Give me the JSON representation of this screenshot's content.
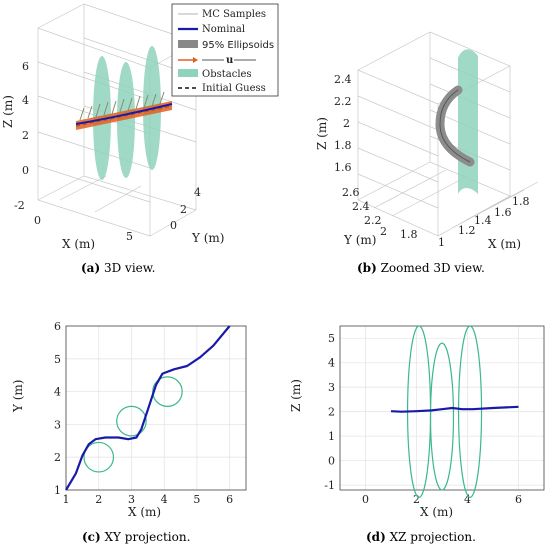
{
  "panels": {
    "a": {
      "caption_tag": "(a)",
      "caption": "3D view."
    },
    "b": {
      "caption_tag": "(b)",
      "caption": "Zoomed 3D view."
    },
    "c": {
      "caption_tag": "(c)",
      "caption": "XY projection."
    },
    "d": {
      "caption_tag": "(d)",
      "caption": "XZ projection."
    }
  },
  "legend": {
    "items": [
      {
        "label": "MC Samples",
        "symbol": "thin-line",
        "color": "#b0b0b0"
      },
      {
        "label": "Nominal",
        "symbol": "thick-line",
        "color": "#1a1aaa"
      },
      {
        "label": "95% Ellipsoids",
        "symbol": "band",
        "color": "#888888"
      },
      {
        "label": "u",
        "symbol": "arrow",
        "color": "#e06020"
      },
      {
        "label": "Obstacles",
        "symbol": "patch",
        "color": "#8fd3bc"
      },
      {
        "label": "Initial Guess",
        "symbol": "dashed-line",
        "color": "#111111"
      }
    ]
  },
  "chart_data": [
    {
      "id": "a",
      "type": "line3d",
      "xlabel": "X (m)",
      "ylabel": "Y (m)",
      "zlabel": "Z (m)",
      "x_ticks": [
        "0",
        "5"
      ],
      "y_ticks": [
        "0",
        "2",
        "4"
      ],
      "z_ticks": [
        "-2",
        "0",
        "2",
        "4",
        "6"
      ],
      "xlim": [
        0,
        7
      ],
      "ylim": [
        0,
        6
      ],
      "zlim": [
        -2,
        6.5
      ]
    },
    {
      "id": "b",
      "type": "line3d",
      "xlabel": "X (m)",
      "ylabel": "Y (m)",
      "zlabel": "Z (m)",
      "x_ticks": [
        "1",
        "1.2",
        "1.4",
        "1.6",
        "1.8"
      ],
      "y_ticks": [
        "1.8",
        "2",
        "2.2",
        "2.4",
        "2.6"
      ],
      "z_ticks": [
        "1.6",
        "1.8",
        "2",
        "2.2",
        "2.4"
      ],
      "xlim": [
        1,
        1.8
      ],
      "ylim": [
        1.8,
        2.6
      ],
      "zlim": [
        1.55,
        2.45
      ]
    },
    {
      "id": "c",
      "type": "line",
      "xlabel": "X (m)",
      "ylabel": "Y (m)",
      "x_ticks": [
        "1",
        "2",
        "3",
        "4",
        "5",
        "6"
      ],
      "y_ticks": [
        "1",
        "2",
        "3",
        "4",
        "5",
        "6"
      ],
      "xlim": [
        1,
        6.5
      ],
      "ylim": [
        1,
        6
      ],
      "grid": true,
      "series": [
        {
          "color": "#1a1aaa",
          "points": [
            [
              1,
              1
            ],
            [
              1.3,
              1.5
            ],
            [
              1.5,
              2.05
            ],
            [
              1.7,
              2.4
            ],
            [
              1.9,
              2.55
            ],
            [
              2.2,
              2.6
            ],
            [
              2.6,
              2.6
            ],
            [
              2.9,
              2.55
            ],
            [
              3.15,
              2.6
            ],
            [
              3.3,
              2.85
            ],
            [
              3.45,
              3.3
            ],
            [
              3.6,
              3.75
            ],
            [
              3.75,
              4.2
            ],
            [
              3.95,
              4.55
            ],
            [
              4.3,
              4.68
            ],
            [
              4.7,
              4.78
            ],
            [
              5.1,
              5.05
            ],
            [
              5.5,
              5.4
            ],
            [
              6,
              6
            ]
          ]
        }
      ],
      "circles": [
        {
          "cx": 2,
          "cy": 2,
          "r": 0.45,
          "color": "#3cb88c"
        },
        {
          "cx": 3,
          "cy": 3.1,
          "r": 0.45,
          "color": "#3cb88c"
        },
        {
          "cx": 4.1,
          "cy": 4,
          "r": 0.45,
          "color": "#3cb88c"
        }
      ]
    },
    {
      "id": "d",
      "type": "line",
      "xlabel": "X (m)",
      "ylabel": "Z (m)",
      "x_ticks": [
        "0",
        "2",
        "4",
        "6"
      ],
      "y_ticks": [
        "-1",
        "0",
        "1",
        "2",
        "3",
        "4",
        "5"
      ],
      "xlim": [
        -1,
        7
      ],
      "ylim": [
        -1.2,
        5.5
      ],
      "grid": true,
      "series": [
        {
          "color": "#1a1aaa",
          "points": [
            [
              1,
              2.02
            ],
            [
              1.4,
              2
            ],
            [
              2,
              2.02
            ],
            [
              2.6,
              2.05
            ],
            [
              3,
              2.1
            ],
            [
              3.4,
              2.15
            ],
            [
              3.8,
              2.1
            ],
            [
              4.2,
              2.1
            ],
            [
              5,
              2.15
            ],
            [
              6,
              2.2
            ]
          ]
        }
      ],
      "ellipses": [
        {
          "cx": 2.1,
          "cy": 2,
          "rx": 0.45,
          "ry": 3.5,
          "color": "#3cb88c"
        },
        {
          "cx": 3,
          "cy": 1.8,
          "rx": 0.45,
          "ry": 3,
          "color": "#3cb88c"
        },
        {
          "cx": 4.1,
          "cy": 2,
          "rx": 0.45,
          "ry": 3.5,
          "color": "#3cb88c"
        }
      ]
    }
  ]
}
